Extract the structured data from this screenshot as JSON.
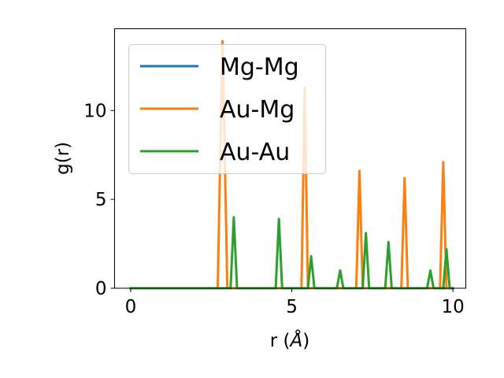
{
  "chart_data": {
    "type": "line",
    "title": "",
    "xlabel": "r (Å)",
    "xlabel_prefix": "r (",
    "xlabel_unit": "Å",
    "xlabel_suffix": ")",
    "ylabel": "g(r)",
    "xlim": [
      -0.5,
      10.4
    ],
    "ylim": [
      0,
      14.6
    ],
    "xticks": [
      0,
      5,
      10
    ],
    "xtick_labels": [
      "0",
      "5",
      "10"
    ],
    "yticks": [
      0,
      5,
      10
    ],
    "ytick_labels": [
      "0",
      "5",
      "10"
    ],
    "grid": false,
    "legend_position": "top-left",
    "series": [
      {
        "name": "Mg-Mg",
        "color": "#1f77b4",
        "x": [
          0,
          10
        ],
        "y": [
          0,
          0
        ]
      },
      {
        "name": "Au-Mg",
        "color": "#ff7f0e",
        "x": [
          0,
          2.7,
          2.85,
          3.0,
          5.3,
          5.4,
          5.5,
          7.0,
          7.1,
          7.2,
          8.4,
          8.5,
          8.6,
          9.6,
          9.7,
          9.8,
          9.9
        ],
        "y": [
          0,
          0,
          13.9,
          0,
          0,
          11.3,
          0,
          0,
          6.6,
          0,
          0,
          6.2,
          0,
          0,
          7.1,
          0,
          0
        ]
      },
      {
        "name": "Au-Au",
        "color": "#2ca02c",
        "x": [
          0,
          3.1,
          3.2,
          3.3,
          4.5,
          4.6,
          4.7,
          5.5,
          5.6,
          5.7,
          6.4,
          6.5,
          6.6,
          7.2,
          7.3,
          7.4,
          7.9,
          8.0,
          8.1,
          9.2,
          9.3,
          9.4,
          9.7,
          9.8,
          9.9
        ],
        "y": [
          0,
          0,
          4.0,
          0,
          0,
          3.9,
          0,
          0,
          1.8,
          0,
          0,
          1.0,
          0,
          0,
          3.1,
          0,
          0,
          2.6,
          0,
          0,
          1.0,
          0,
          0,
          2.2,
          0
        ]
      }
    ]
  }
}
